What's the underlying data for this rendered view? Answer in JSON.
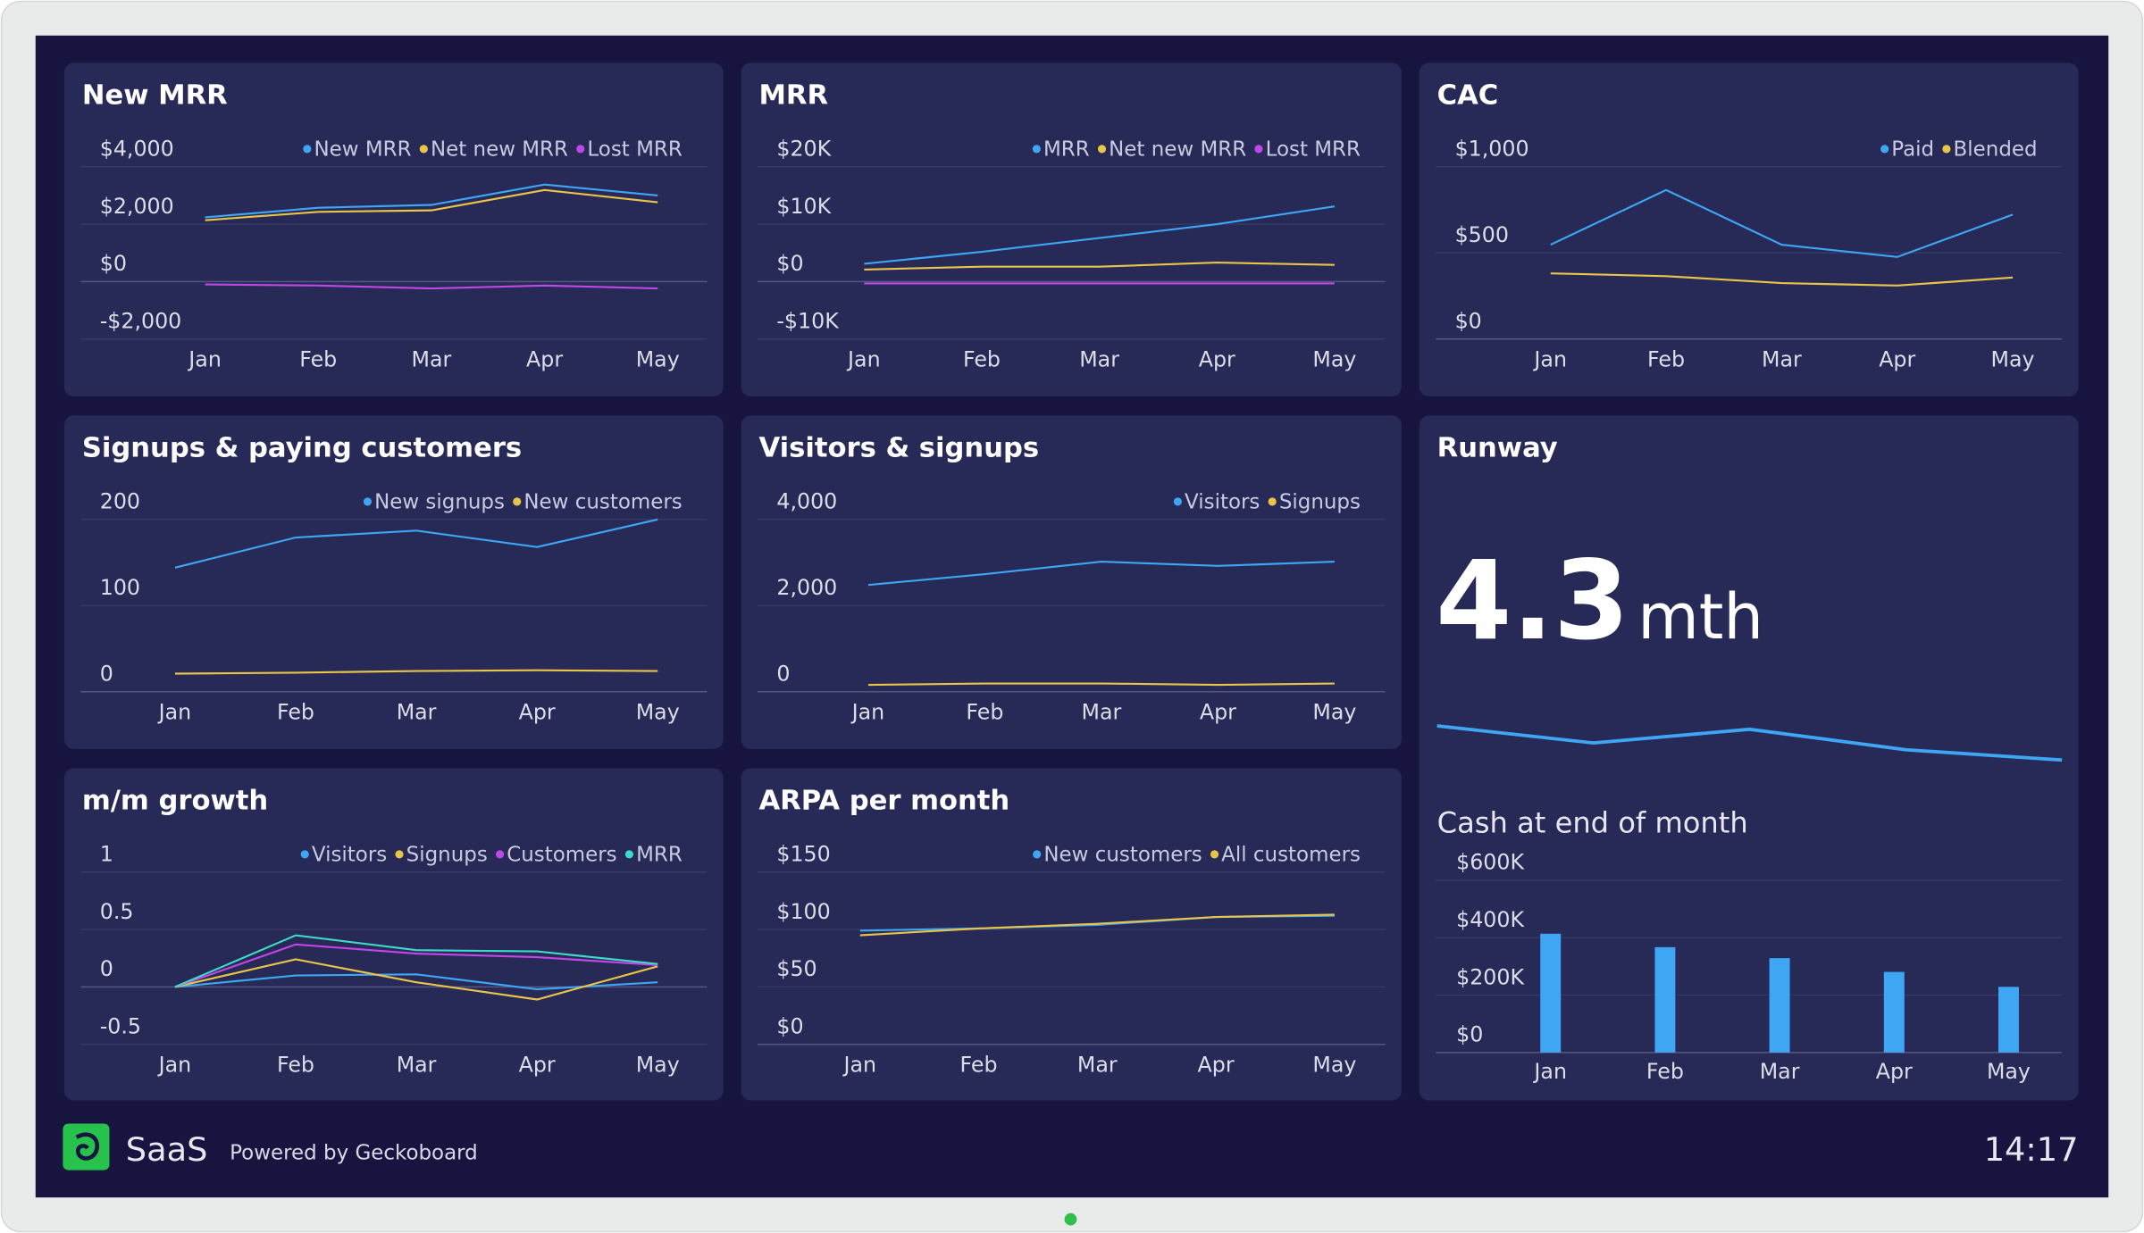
{
  "widgets": [
    {
      "type": "line",
      "title": "New MRR",
      "categories": [
        "Jan",
        "Feb",
        "Mar",
        "Apr",
        "May"
      ],
      "series": [
        {
          "name": "New MRR",
          "color": "#3ea6f2",
          "values": [
            2240,
            2570,
            2670,
            3380,
            3000
          ]
        },
        {
          "name": "Net new MRR",
          "color": "#e8c547",
          "values": [
            2140,
            2430,
            2480,
            3190,
            2760
          ]
        },
        {
          "name": "Lost MRR",
          "color": "#c048e6",
          "values": [
            -100,
            -140,
            -240,
            -140,
            -240
          ]
        }
      ],
      "ylim": [
        -2000,
        4000
      ],
      "yticks": [
        {
          "value": 4000,
          "label": "$4,000"
        },
        {
          "value": 2000,
          "label": "$2,000"
        },
        {
          "value": 0,
          "label": "$0"
        },
        {
          "value": -2000,
          "label": "-$2,000"
        }
      ]
    },
    {
      "type": "line",
      "title": "MRR",
      "categories": [
        "Jan",
        "Feb",
        "Mar",
        "Apr",
        "May"
      ],
      "series": [
        {
          "name": "MRR",
          "color": "#3ea6f2",
          "values": [
            3100,
            5200,
            7600,
            10000,
            13100
          ]
        },
        {
          "name": "Net new MRR",
          "color": "#e8c547",
          "values": [
            2100,
            2600,
            2600,
            3300,
            2900
          ]
        },
        {
          "name": "Lost MRR",
          "color": "#c048e6",
          "values": [
            -300,
            -300,
            -300,
            -300,
            -300
          ]
        }
      ],
      "ylim": [
        -10000,
        20000
      ],
      "yticks": [
        {
          "value": 20000,
          "label": "$20K"
        },
        {
          "value": 10000,
          "label": "$10K"
        },
        {
          "value": 0,
          "label": "$0"
        },
        {
          "value": -10000,
          "label": "-$10K"
        }
      ]
    },
    {
      "type": "line",
      "title": "CAC",
      "categories": [
        "Jan",
        "Feb",
        "Mar",
        "Apr",
        "May"
      ],
      "series": [
        {
          "name": "Paid",
          "color": "#3ea6f2",
          "values": [
            548,
            865,
            548,
            476,
            722
          ]
        },
        {
          "name": "Blended",
          "color": "#e8c547",
          "values": [
            381,
            365,
            325,
            310,
            357
          ]
        }
      ],
      "ylim": [
        0,
        1000
      ],
      "yticks": [
        {
          "value": 1000,
          "label": "$1,000"
        },
        {
          "value": 500,
          "label": "$500"
        },
        {
          "value": 0,
          "label": "$0"
        }
      ]
    },
    {
      "type": "line",
      "title": "Signups & paying customers",
      "categories": [
        "Jan",
        "Feb",
        "Mar",
        "Apr",
        "May"
      ],
      "series": [
        {
          "name": "New signups",
          "color": "#3ea6f2",
          "values": [
            144,
            179,
            187,
            168,
            200
          ]
        },
        {
          "name": "New customers",
          "color": "#e8c547",
          "values": [
            21,
            22,
            24,
            25,
            24
          ]
        }
      ],
      "ylim": [
        0,
        200
      ],
      "yticks": [
        200,
        100,
        0
      ]
    },
    {
      "type": "line",
      "title": "Visitors & signups",
      "categories": [
        "Jan",
        "Feb",
        "Mar",
        "Apr",
        "May"
      ],
      "series": [
        {
          "name": "Visitors",
          "color": "#3ea6f2",
          "values": [
            2480,
            2730,
            3020,
            2920,
            3020
          ]
        },
        {
          "name": "Signups",
          "color": "#e8c547",
          "values": [
            160,
            190,
            190,
            160,
            190
          ]
        }
      ],
      "ylim": [
        0,
        4000
      ],
      "yticks": [
        {
          "value": 4000,
          "label": "4,000"
        },
        {
          "value": 2000,
          "label": "2,000"
        },
        0
      ]
    },
    {
      "type": "runway",
      "title": "Runway",
      "value": 4.3,
      "unit": "mth",
      "sparkline": {
        "type": "line",
        "color": "#3ea6f2",
        "values": [
          5.3,
          4.8,
          5.2,
          4.6,
          4.3
        ]
      },
      "chart": {
        "type": "bar",
        "title": "Cash at end of month",
        "categories": [
          "Jan",
          "Feb",
          "Mar",
          "Apr",
          "May"
        ],
        "values": [
          414000,
          367000,
          329000,
          281000,
          229000
        ],
        "color": "#3ea6f2",
        "ylim": [
          0,
          600000
        ],
        "yticks": [
          {
            "value": 600000,
            "label": "$600K"
          },
          {
            "value": 400000,
            "label": "$400K"
          },
          {
            "value": 200000,
            "label": "$200K"
          },
          {
            "value": 0,
            "label": "$0"
          }
        ]
      }
    },
    {
      "type": "line",
      "title": "m/m growth",
      "categories": [
        "Jan",
        "Feb",
        "Mar",
        "Apr",
        "May"
      ],
      "series": [
        {
          "name": "Visitors",
          "color": "#3ea6f2",
          "values": [
            0,
            0.1,
            0.11,
            -0.02,
            0.04
          ]
        },
        {
          "name": "Signups",
          "color": "#e8c547",
          "values": [
            0,
            0.24,
            0.04,
            -0.11,
            0.18
          ]
        },
        {
          "name": "Customers",
          "color": "#c048e6",
          "values": [
            0,
            0.37,
            0.29,
            0.26,
            0.19
          ]
        },
        {
          "name": "MRR",
          "color": "#3fd9c9",
          "values": [
            0,
            0.45,
            0.32,
            0.31,
            0.2
          ]
        }
      ],
      "ylim": [
        -0.5,
        1
      ],
      "yticks": [
        1,
        0.5,
        0,
        -0.5
      ]
    },
    {
      "type": "line",
      "title": "ARPA per month",
      "categories": [
        "Jan",
        "Feb",
        "Mar",
        "Apr",
        "May"
      ],
      "series": [
        {
          "name": "New customers",
          "color": "#3ea6f2",
          "values": [
            99,
            101,
            104,
            111,
            112
          ]
        },
        {
          "name": "All customers",
          "color": "#e8c547",
          "values": [
            95,
            101,
            105,
            111,
            113
          ]
        }
      ],
      "ylim": [
        0,
        150
      ],
      "yticks": [
        {
          "value": 150,
          "label": "$150"
        },
        {
          "value": 100,
          "label": "$100"
        },
        {
          "value": 50,
          "label": "$50"
        },
        {
          "value": 0,
          "label": "$0"
        }
      ]
    }
  ],
  "footer": {
    "name": "SaaS",
    "powered_by": "Powered by Geckoboard",
    "time": "14:17"
  }
}
